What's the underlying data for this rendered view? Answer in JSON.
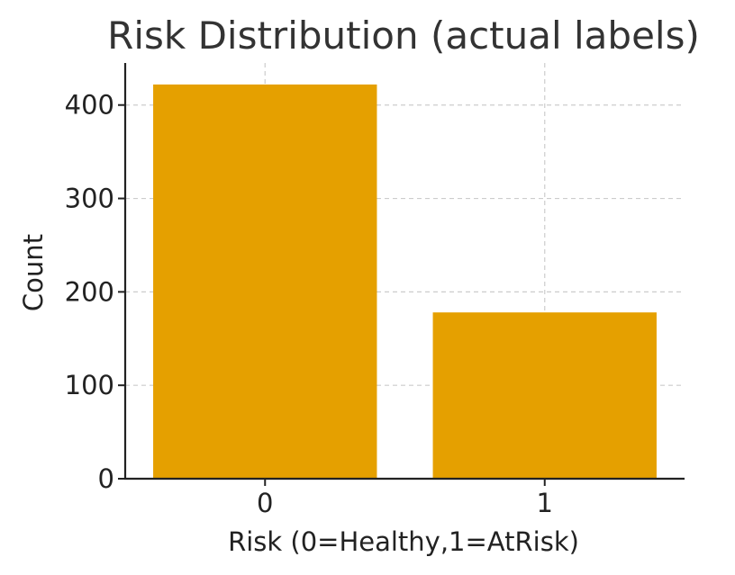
{
  "chart_data": {
    "type": "bar",
    "title": "Risk Distribution (actual labels)",
    "xlabel": "Risk (0=Healthy,1=AtRisk)",
    "ylabel": "Count",
    "categories": [
      "0",
      "1"
    ],
    "values": [
      422,
      178
    ],
    "ylim": [
      0,
      445
    ],
    "yticks": [
      "0",
      "100",
      "200",
      "300",
      "400"
    ],
    "grid": true,
    "bar_color": "#E5A000",
    "text_color": "#222222"
  }
}
